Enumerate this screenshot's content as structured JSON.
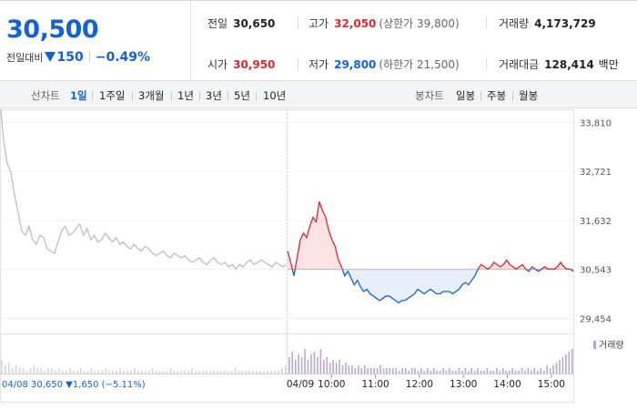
{
  "colors": {
    "up": "#e0262c",
    "down": "#1560d6",
    "gray": "#bdbdbd",
    "volume": "#b9a7d6"
  },
  "header": {
    "price": "30,500",
    "change_label": "전일대비",
    "change_value": "150",
    "change_pct": "−0.49%",
    "prev_close": {
      "label": "전일",
      "value": "30,650"
    },
    "high": {
      "label": "고가",
      "value": "32,050",
      "limit_text": "(상한가 39,800)"
    },
    "volume": {
      "label": "거래량",
      "value": "4,173,729"
    },
    "open": {
      "label": "시가",
      "value": "30,950"
    },
    "low": {
      "label": "저가",
      "value": "29,800",
      "limit_text": "(하한가 21,500)"
    },
    "trade_amount": {
      "label": "거래대금",
      "value": "128,414",
      "unit": "백만"
    }
  },
  "toolbar": {
    "line_label": "선차트",
    "periods": [
      "1일",
      "1주일",
      "3개월",
      "1년",
      "3년",
      "5년",
      "10년"
    ],
    "active_period": "1일",
    "candle_label": "봉차트",
    "candles": [
      "일봉",
      "주봉",
      "월봉"
    ]
  },
  "chart_data": {
    "type": "line",
    "title": "",
    "xlabel": "",
    "ylabel": "",
    "ylim": [
      29200,
      34100
    ],
    "y_ticks": [
      "33,810",
      "32,721",
      "31,632",
      "30,543",
      "29,454"
    ],
    "y_tick_values": [
      33810,
      32721,
      31632,
      30543,
      29454
    ],
    "baseline": 30543,
    "x_labels": [
      "04/08",
      "04/09",
      "10:00",
      "11:00",
      "12:00",
      "13:00",
      "14:00",
      "15:00"
    ],
    "prev_day": {
      "date": "04/08",
      "info": "04/08  30,650 ▼1,650 (−5.11%)",
      "series": [
        34300,
        33400,
        32900,
        32700,
        32200,
        31800,
        31400,
        31300,
        31500,
        31200,
        31100,
        31300,
        31250,
        31000,
        30950,
        30900,
        31150,
        31400,
        31500,
        31300,
        31350,
        31450,
        31550,
        31300,
        31450,
        31200,
        31300,
        31150,
        31200,
        31350,
        31250,
        31150,
        31250,
        31100,
        31150,
        31050,
        31000,
        31100,
        31000,
        30950,
        31050,
        31000,
        30900,
        30850,
        30900,
        30950,
        30850,
        30800,
        30900,
        30850,
        30800,
        30850,
        30750,
        30700,
        30750,
        30800,
        30700,
        30650,
        30750,
        30800,
        30700,
        30650,
        30700,
        30600,
        30650,
        30550,
        30650,
        30600,
        30700,
        30750,
        30650,
        30700,
        30750,
        30700,
        30650,
        30600,
        30700,
        30650,
        30600,
        30650
      ]
    },
    "today": {
      "date": "04/09",
      "x_range": [
        "09:00",
        "15:30"
      ],
      "series": [
        30950,
        30700,
        30400,
        30800,
        31200,
        31350,
        31250,
        31500,
        31700,
        31600,
        32050,
        31850,
        31700,
        31400,
        31200,
        31050,
        30750,
        30600,
        30400,
        30500,
        30350,
        30200,
        30300,
        30150,
        30050,
        30100,
        30000,
        29950,
        29900,
        29850,
        29900,
        29950,
        29950,
        29900,
        29850,
        29800,
        29850,
        29850,
        29900,
        29950,
        30000,
        30100,
        30050,
        30000,
        30050,
        30100,
        30050,
        30000,
        30000,
        30050,
        30050,
        30050,
        30000,
        30050,
        30100,
        30200,
        30250,
        30200,
        30300,
        30400,
        30550,
        30650,
        30600,
        30550,
        30600,
        30700,
        30650,
        30600,
        30650,
        30750,
        30650,
        30600,
        30550,
        30600,
        30650,
        30550,
        30500,
        30600,
        30550,
        30500,
        30550,
        30600,
        30550,
        30550,
        30550,
        30600,
        30700,
        30600,
        30550,
        30550,
        30500
      ]
    },
    "volume_legend": "거래량",
    "volume": {
      "prev_day": [
        5,
        3,
        4,
        2,
        3,
        2,
        2,
        1,
        2,
        3,
        2,
        2,
        1,
        2,
        2,
        1,
        2,
        1,
        1,
        2,
        1,
        1,
        2,
        1,
        1,
        2,
        1,
        1,
        1,
        2,
        1,
        1,
        1,
        2,
        1,
        1,
        1,
        2,
        1,
        1,
        1,
        1,
        2,
        1,
        1,
        1,
        1,
        2,
        1,
        1,
        1,
        1,
        1,
        2,
        1,
        1,
        1,
        1,
        1,
        1,
        1,
        1,
        1,
        1,
        1,
        2,
        1,
        1,
        1,
        1,
        1,
        1,
        1,
        1,
        1,
        1,
        1,
        1,
        2,
        3
      ],
      "today": [
        6,
        8,
        5,
        7,
        6,
        9,
        5,
        7,
        8,
        6,
        9,
        5,
        6,
        4,
        5,
        4,
        5,
        3,
        4,
        3,
        3,
        2,
        3,
        2,
        3,
        2,
        2,
        2,
        2,
        3,
        2,
        2,
        2,
        2,
        2,
        1,
        2,
        2,
        1,
        2,
        2,
        1,
        2,
        1,
        2,
        1,
        2,
        1,
        1,
        2,
        1,
        2,
        1,
        1,
        2,
        1,
        2,
        1,
        2,
        1,
        2,
        1,
        1,
        2,
        1,
        1,
        2,
        1,
        2,
        1,
        1,
        2,
        1,
        1,
        2,
        1,
        2,
        1,
        2,
        1,
        2,
        1,
        3,
        2,
        3,
        4,
        5,
        6,
        7,
        8,
        9
      ]
    }
  }
}
